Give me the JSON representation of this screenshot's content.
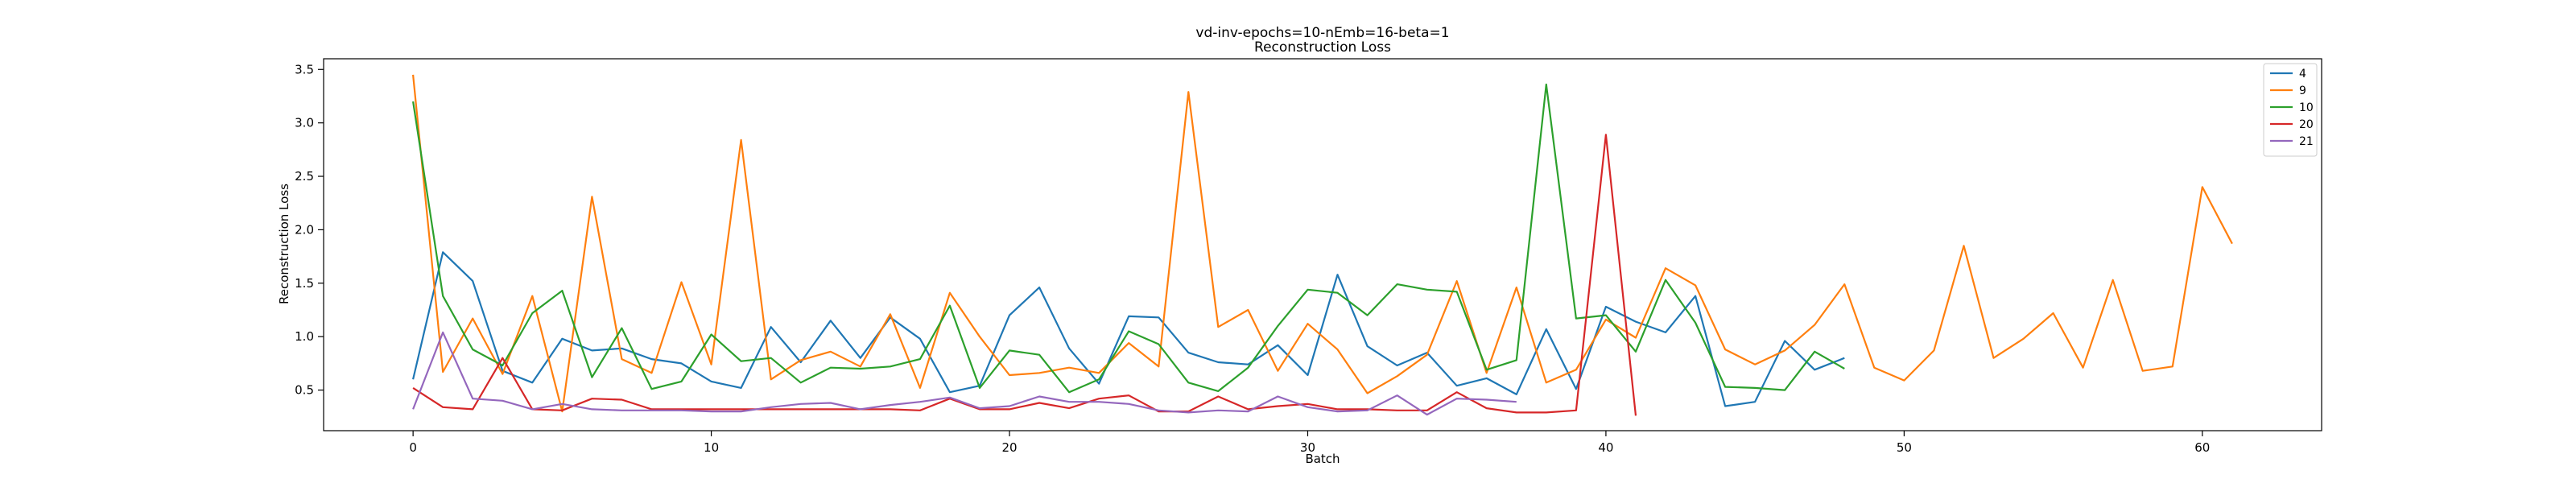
{
  "chart_data": {
    "type": "line",
    "title": "vd-inv-epochs=10-nEmb=16-beta=1",
    "subtitle": "Reconstruction Loss",
    "xlabel": "Batch",
    "ylabel": "Reconstruction Loss",
    "xlim": [
      -3,
      64
    ],
    "ylim": [
      0.12,
      3.6
    ],
    "xticks": [
      0,
      10,
      20,
      30,
      40,
      50,
      60
    ],
    "yticks": [
      0.5,
      1.0,
      1.5,
      2.0,
      2.5,
      3.0,
      3.5
    ],
    "grid": false,
    "legend_position": "top-right",
    "series": [
      {
        "name": "4",
        "color": "#1f77b4",
        "x": [
          0,
          1,
          2,
          3,
          4,
          5,
          6,
          7,
          8,
          9,
          10,
          11,
          12,
          13,
          14,
          15,
          16,
          17,
          18,
          19,
          20,
          21,
          22,
          23,
          24,
          25,
          26,
          27,
          28,
          29,
          30,
          31,
          32,
          33,
          34,
          35,
          36,
          37,
          38,
          39,
          40,
          41,
          42,
          43,
          44,
          45,
          46,
          47,
          48
        ],
        "y": [
          0.6,
          1.79,
          1.52,
          0.68,
          0.57,
          0.98,
          0.87,
          0.89,
          0.79,
          0.75,
          0.58,
          0.52,
          1.09,
          0.76,
          1.15,
          0.8,
          1.18,
          0.98,
          0.48,
          0.54,
          1.2,
          1.46,
          0.89,
          0.56,
          1.19,
          1.18,
          0.85,
          0.76,
          0.74,
          0.92,
          0.64,
          1.58,
          0.91,
          0.73,
          0.85,
          0.54,
          0.61,
          0.46,
          1.07,
          0.51,
          1.28,
          1.14,
          1.04,
          1.38,
          0.35,
          0.39,
          0.96,
          0.69,
          0.8
        ]
      },
      {
        "name": "9",
        "color": "#ff7f0e",
        "x": [
          0,
          1,
          2,
          3,
          4,
          5,
          6,
          7,
          8,
          9,
          10,
          11,
          12,
          13,
          14,
          15,
          16,
          17,
          18,
          19,
          20,
          21,
          22,
          23,
          24,
          25,
          26,
          27,
          28,
          29,
          30,
          31,
          32,
          33,
          34,
          35,
          36,
          37,
          38,
          39,
          40,
          41,
          42,
          43,
          44,
          45,
          46,
          47,
          48,
          49,
          50,
          51,
          52,
          53,
          54,
          55,
          56,
          57,
          58,
          59,
          60,
          61
        ],
        "y": [
          3.45,
          0.67,
          1.17,
          0.65,
          1.38,
          0.3,
          2.31,
          0.79,
          0.66,
          1.51,
          0.74,
          2.84,
          0.6,
          0.78,
          0.86,
          0.72,
          1.21,
          0.52,
          1.41,
          1.0,
          0.64,
          0.66,
          0.71,
          0.66,
          0.94,
          0.72,
          3.29,
          1.09,
          1.25,
          0.68,
          1.12,
          0.88,
          0.47,
          0.63,
          0.83,
          1.52,
          0.66,
          1.46,
          0.57,
          0.69,
          1.16,
          0.99,
          1.64,
          1.48,
          0.88,
          0.74,
          0.87,
          1.11,
          1.49,
          0.71,
          0.59,
          0.87,
          1.85,
          0.8,
          0.98,
          1.22,
          0.71,
          1.53,
          0.68,
          0.72,
          2.4,
          1.87
        ]
      },
      {
        "name": "10",
        "color": "#2ca02c",
        "x": [
          0,
          1,
          2,
          3,
          4,
          5,
          6,
          7,
          8,
          9,
          10,
          11,
          12,
          13,
          14,
          15,
          16,
          17,
          18,
          19,
          20,
          21,
          22,
          23,
          24,
          25,
          26,
          27,
          28,
          29,
          30,
          31,
          32,
          33,
          34,
          35,
          36,
          37,
          38,
          39,
          40,
          41,
          42,
          43,
          44,
          45,
          46,
          47,
          48
        ],
        "y": [
          3.2,
          1.38,
          0.88,
          0.73,
          1.22,
          1.43,
          0.62,
          1.08,
          0.51,
          0.58,
          1.02,
          0.77,
          0.8,
          0.57,
          0.71,
          0.7,
          0.72,
          0.79,
          1.29,
          0.52,
          0.87,
          0.83,
          0.48,
          0.6,
          1.05,
          0.93,
          0.57,
          0.49,
          0.71,
          1.1,
          1.44,
          1.41,
          1.2,
          1.49,
          1.44,
          1.42,
          0.69,
          0.78,
          3.36,
          1.17,
          1.2,
          0.86,
          1.53,
          1.13,
          0.53,
          0.52,
          0.5,
          0.86,
          0.7
        ]
      },
      {
        "name": "20",
        "color": "#d62728",
        "x": [
          0,
          1,
          2,
          3,
          4,
          5,
          6,
          7,
          8,
          9,
          10,
          11,
          12,
          13,
          14,
          15,
          16,
          17,
          18,
          19,
          20,
          21,
          22,
          23,
          24,
          25,
          26,
          27,
          28,
          29,
          30,
          31,
          32,
          33,
          34,
          35,
          36,
          37,
          38,
          39,
          40,
          41
        ],
        "y": [
          0.52,
          0.34,
          0.32,
          0.8,
          0.32,
          0.31,
          0.42,
          0.41,
          0.32,
          0.32,
          0.32,
          0.32,
          0.32,
          0.32,
          0.32,
          0.32,
          0.32,
          0.31,
          0.42,
          0.32,
          0.32,
          0.38,
          0.33,
          0.42,
          0.45,
          0.3,
          0.3,
          0.44,
          0.32,
          0.35,
          0.37,
          0.32,
          0.32,
          0.31,
          0.31,
          0.48,
          0.33,
          0.29,
          0.29,
          0.31,
          2.89,
          0.26
        ]
      },
      {
        "name": "21",
        "color": "#9467bd",
        "x": [
          0,
          1,
          2,
          3,
          4,
          5,
          6,
          7,
          8,
          9,
          10,
          11,
          12,
          13,
          14,
          15,
          16,
          17,
          18,
          19,
          20,
          21,
          22,
          23,
          24,
          25,
          26,
          27,
          28,
          29,
          30,
          31,
          32,
          33,
          34,
          35,
          36,
          37
        ],
        "y": [
          0.32,
          1.04,
          0.42,
          0.4,
          0.32,
          0.37,
          0.32,
          0.31,
          0.31,
          0.31,
          0.3,
          0.3,
          0.34,
          0.37,
          0.38,
          0.32,
          0.36,
          0.39,
          0.43,
          0.33,
          0.35,
          0.44,
          0.39,
          0.39,
          0.37,
          0.31,
          0.29,
          0.31,
          0.3,
          0.44,
          0.34,
          0.3,
          0.31,
          0.45,
          0.27,
          0.42,
          0.41,
          0.39
        ]
      }
    ]
  }
}
